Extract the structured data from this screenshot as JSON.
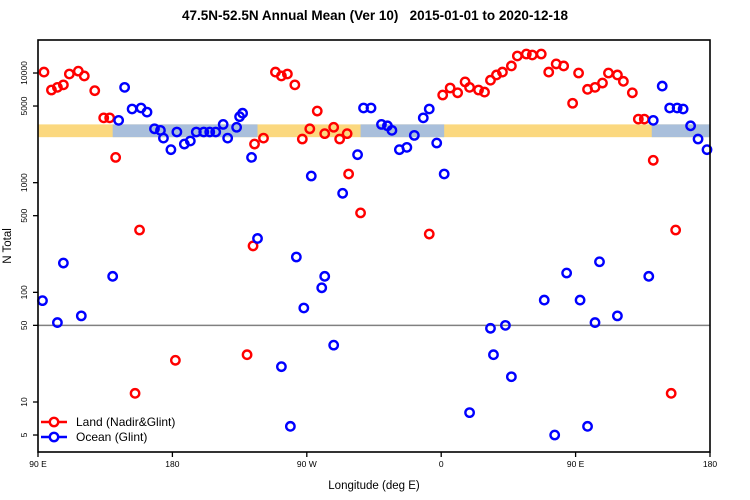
{
  "title": "47.5N-52.5N Annual Mean (Ver 10)   2015-01-01 to 2020-12-18",
  "chart_data": {
    "type": "scatter",
    "xlabel": "Longitude (deg E)",
    "ylabel": "N Total",
    "x_axis": {
      "domain": [
        90,
        540
      ],
      "ticks": [
        {
          "value": 90,
          "label": "90 E"
        },
        {
          "value": 180,
          "label": "180"
        },
        {
          "value": 270,
          "label": "90 W"
        },
        {
          "value": 360,
          "label": "0"
        },
        {
          "value": 450,
          "label": "90 E"
        },
        {
          "value": 540,
          "label": "180"
        }
      ]
    },
    "y_axis": {
      "scale": "log",
      "domain": [
        3.5,
        20000
      ],
      "ticks": [
        {
          "value": 5,
          "label": "5"
        },
        {
          "value": 10,
          "label": "10"
        },
        {
          "value": 50,
          "label": "50"
        },
        {
          "value": 100,
          "label": "100"
        },
        {
          "value": 500,
          "label": "500"
        },
        {
          "value": 1000,
          "label": "1000"
        },
        {
          "value": 5000,
          "label": "5000"
        },
        {
          "value": 10000,
          "label": "10000"
        }
      ]
    },
    "reference_line": {
      "y": 50,
      "color": "#808080"
    },
    "bands": [
      {
        "name": "land-mean-band",
        "color": "#FBD87F",
        "value_range": [
          2600,
          3400
        ],
        "x_ranges": [
          [
            90,
            540
          ]
        ]
      },
      {
        "name": "ocean-mean-band",
        "color": "#A9BFDB",
        "value_range": [
          2600,
          3400
        ],
        "x_ranges": [
          [
            140,
            237
          ],
          [
            306,
            362
          ],
          [
            501,
            540
          ]
        ]
      }
    ],
    "series": [
      {
        "name": "Land (Nadir&Glint)",
        "color": "#FF0000",
        "points": [
          [
            94,
            10200
          ],
          [
            99,
            7000
          ],
          [
            103,
            7400
          ],
          [
            107,
            7800
          ],
          [
            111,
            9800
          ],
          [
            117,
            10400
          ],
          [
            121,
            9400
          ],
          [
            128,
            6900
          ],
          [
            134,
            3900
          ],
          [
            138,
            3900
          ],
          [
            142,
            1700
          ],
          [
            158,
            370
          ],
          [
            155,
            12
          ],
          [
            182,
            24
          ],
          [
            230,
            27
          ],
          [
            234,
            265
          ],
          [
            235,
            2250
          ],
          [
            241,
            2550
          ],
          [
            249,
            10200
          ],
          [
            253,
            9400
          ],
          [
            257,
            9800
          ],
          [
            262,
            7800
          ],
          [
            267,
            2500
          ],
          [
            272,
            3100
          ],
          [
            277,
            4500
          ],
          [
            282,
            2800
          ],
          [
            288,
            3200
          ],
          [
            292,
            2500
          ],
          [
            297,
            2800
          ],
          [
            298,
            1200
          ],
          [
            306,
            530
          ],
          [
            352,
            340
          ],
          [
            361,
            6300
          ],
          [
            366,
            7300
          ],
          [
            371,
            6600
          ],
          [
            376,
            8300
          ],
          [
            379,
            7400
          ],
          [
            385,
            7000
          ],
          [
            389,
            6700
          ],
          [
            393,
            8600
          ],
          [
            397,
            9600
          ],
          [
            401,
            10200
          ],
          [
            407,
            11600
          ],
          [
            411,
            14300
          ],
          [
            417,
            14900
          ],
          [
            421,
            14600
          ],
          [
            427,
            14900
          ],
          [
            432,
            10200
          ],
          [
            437,
            12100
          ],
          [
            442,
            11600
          ],
          [
            448,
            5300
          ],
          [
            452,
            10000
          ],
          [
            458,
            7100
          ],
          [
            463,
            7400
          ],
          [
            468,
            8100
          ],
          [
            472,
            10000
          ],
          [
            478,
            9600
          ],
          [
            482,
            8400
          ],
          [
            488,
            6600
          ],
          [
            492,
            3800
          ],
          [
            496,
            3800
          ],
          [
            502,
            1600
          ],
          [
            517,
            370
          ],
          [
            514,
            12
          ]
        ]
      },
      {
        "name": "Ocean (Glint)",
        "color": "#0000FF",
        "points": [
          [
            93,
            84
          ],
          [
            103,
            53
          ],
          [
            107,
            185
          ],
          [
            119,
            61
          ],
          [
            140,
            140
          ],
          [
            144,
            3700
          ],
          [
            148,
            7400
          ],
          [
            153,
            4700
          ],
          [
            159,
            4800
          ],
          [
            163,
            4400
          ],
          [
            168,
            3100
          ],
          [
            172,
            3000
          ],
          [
            174,
            2550
          ],
          [
            179,
            2000
          ],
          [
            183,
            2900
          ],
          [
            188,
            2250
          ],
          [
            192,
            2400
          ],
          [
            196,
            2900
          ],
          [
            201,
            2900
          ],
          [
            205,
            2900
          ],
          [
            209,
            2900
          ],
          [
            214,
            3400
          ],
          [
            217,
            2550
          ],
          [
            223,
            3200
          ],
          [
            225,
            4000
          ],
          [
            227,
            4300
          ],
          [
            233,
            1700
          ],
          [
            237,
            310
          ],
          [
            253,
            21
          ],
          [
            259,
            6
          ],
          [
            263,
            210
          ],
          [
            268,
            72
          ],
          [
            273,
            1150
          ],
          [
            280,
            110
          ],
          [
            282,
            140
          ],
          [
            288,
            33
          ],
          [
            294,
            800
          ],
          [
            304,
            1800
          ],
          [
            308,
            4800
          ],
          [
            313,
            4800
          ],
          [
            320,
            3400
          ],
          [
            324,
            3300
          ],
          [
            327,
            3000
          ],
          [
            332,
            2000
          ],
          [
            337,
            2100
          ],
          [
            342,
            2700
          ],
          [
            348,
            3900
          ],
          [
            352,
            4700
          ],
          [
            357,
            2300
          ],
          [
            362,
            1200
          ],
          [
            379,
            8
          ],
          [
            393,
            47
          ],
          [
            395,
            27
          ],
          [
            403,
            50
          ],
          [
            407,
            17
          ],
          [
            429,
            85
          ],
          [
            436,
            5
          ],
          [
            444,
            150
          ],
          [
            453,
            85
          ],
          [
            458,
            6
          ],
          [
            463,
            53
          ],
          [
            466,
            190
          ],
          [
            478,
            61
          ],
          [
            499,
            140
          ],
          [
            502,
            3700
          ],
          [
            508,
            7600
          ],
          [
            513,
            4800
          ],
          [
            518,
            4800
          ],
          [
            522,
            4700
          ],
          [
            527,
            3300
          ],
          [
            532,
            2500
          ],
          [
            538,
            2000
          ]
        ]
      }
    ],
    "legend": {
      "position": "bottom-left",
      "entries": [
        {
          "label": "Land (Nadir&Glint)",
          "color": "#FF0000"
        },
        {
          "label": "Ocean (Glint)",
          "color": "#0000FF"
        }
      ]
    }
  }
}
